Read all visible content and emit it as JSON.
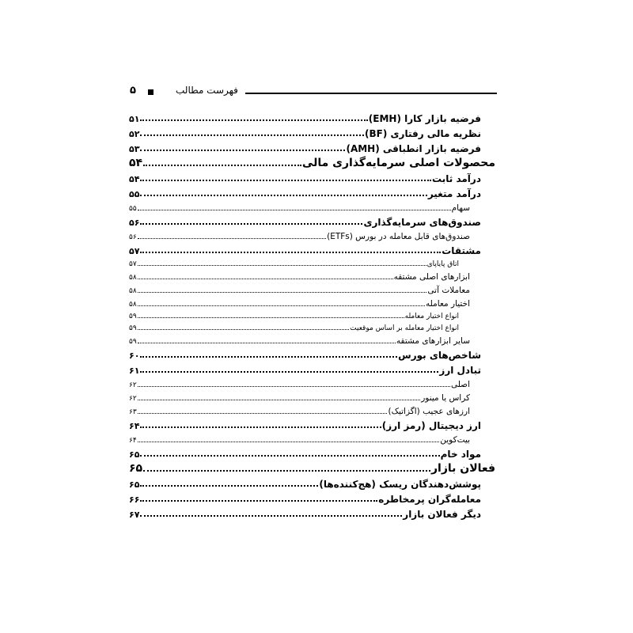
{
  "header": {
    "page_number": "۵",
    "title": "فهرست مطالب"
  },
  "toc": [
    {
      "title": "فرضیه بازار کارا (EMH)",
      "page": "۵۱",
      "level": 2
    },
    {
      "title": "نظریه مالی رفتاری (BF)",
      "page": "۵۲",
      "level": 2
    },
    {
      "title": "فرضیه بازار انطباقی (AMH)",
      "page": "۵۳",
      "level": 2
    },
    {
      "title": "محصولات اصلی سرمایه‌گذاری مالی",
      "page": "۵۴",
      "level": 1
    },
    {
      "title": "درآمد ثابت",
      "page": "۵۴",
      "level": 2
    },
    {
      "title": "درآمد متغیر",
      "page": "۵۵",
      "level": 2
    },
    {
      "title": "سهام",
      "page": "۵۵",
      "level": 3
    },
    {
      "title": "صندوق‌های سرمایه‌گذاری",
      "page": "۵۶",
      "level": 2
    },
    {
      "title": "صندوق‌های قابل معامله در بورس (ETFs)",
      "page": "۵۶",
      "level": 3
    },
    {
      "title": "مشتقات",
      "page": "۵۷",
      "level": 2
    },
    {
      "title": "اتاق پایاپای",
      "page": "۵۷",
      "level": 4
    },
    {
      "title": "ابزارهای اصلی مشتقه",
      "page": "۵۸",
      "level": 3
    },
    {
      "title": "معاملات آتی",
      "page": "۵۸",
      "level": 3
    },
    {
      "title": "اختیار معامله",
      "page": "۵۸",
      "level": 3
    },
    {
      "title": "انواع اختیار معامله",
      "page": "۵۹",
      "level": 4
    },
    {
      "title": "انواع اختیار معامله بر اساس موقعیت",
      "page": "۵۹",
      "level": 4
    },
    {
      "title": "سایر ابزارهای مشتقه",
      "page": "۵۹",
      "level": 3
    },
    {
      "title": "شاخص‌های بورس",
      "page": "۶۰",
      "level": 2
    },
    {
      "title": "تبادل ارز",
      "page": "۶۱",
      "level": 2
    },
    {
      "title": "اصلی",
      "page": "۶۲",
      "level": 3
    },
    {
      "title": "کراس یا مینور",
      "page": "۶۲",
      "level": 3
    },
    {
      "title": "ارزهای عجیب (اگزاتیک)",
      "page": "۶۳",
      "level": 3
    },
    {
      "title": "ارز دیجیتال (رمز ارز)",
      "page": "۶۴",
      "level": 2
    },
    {
      "title": "بیت‌کوین",
      "page": "۶۴",
      "level": 3
    },
    {
      "title": "مواد خام",
      "page": "۶۵",
      "level": 2
    },
    {
      "title": "فعالان بازار",
      "page": "۶۵",
      "level": 1
    },
    {
      "title": "پوشش‌دهندگان ریسک (هج‌کننده‌ها)",
      "page": "۶۵",
      "level": 2
    },
    {
      "title": "معامله‌گران پرمخاطره",
      "page": "۶۶",
      "level": 2
    },
    {
      "title": "دیگر فعالان بازار",
      "page": "۶۷",
      "level": 2
    }
  ]
}
